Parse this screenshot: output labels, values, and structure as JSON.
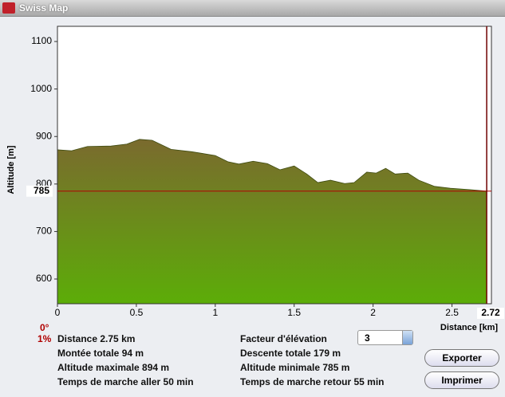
{
  "window": {
    "title": "Swiss Map"
  },
  "chart_data": {
    "type": "area",
    "x_label": "Distance [km]",
    "y_label": "Altitude [m]",
    "x": [
      0,
      0.09,
      0.19,
      0.34,
      0.44,
      0.52,
      0.6,
      0.72,
      0.85,
      1.0,
      1.08,
      1.15,
      1.24,
      1.33,
      1.41,
      1.5,
      1.58,
      1.65,
      1.73,
      1.82,
      1.88,
      1.96,
      2.02,
      2.08,
      2.14,
      2.22,
      2.29,
      2.39,
      2.49,
      2.62,
      2.72
    ],
    "values": [
      872,
      870,
      879,
      880,
      884,
      894,
      892,
      873,
      868,
      860,
      847,
      842,
      848,
      843,
      830,
      838,
      821,
      803,
      808,
      801,
      803,
      825,
      823,
      833,
      821,
      823,
      808,
      795,
      791,
      788,
      785
    ],
    "xlim": [
      0,
      2.75
    ],
    "ylim": [
      548,
      1132
    ],
    "xticks": [
      0,
      0.5,
      1,
      1.5,
      2,
      2.5
    ],
    "yticks": [
      600,
      700,
      800,
      900,
      1000,
      1100
    ],
    "marker_x": 2.72,
    "marker_y": 785,
    "top_color": "#7a6a2e",
    "bottom_color": "#5cad08"
  },
  "indicators": {
    "angle": "0°",
    "slope": "1%"
  },
  "stats": {
    "distance": {
      "label": "Distance",
      "value": "2.75 km"
    },
    "ascent": {
      "label": "Montée totale",
      "value": "94 m"
    },
    "max_altitude": {
      "label": "Altitude maximale",
      "value": "894 m"
    },
    "time_out": {
      "label": "Temps de marche aller",
      "value": "50 min"
    },
    "descent": {
      "label": "Descente totale",
      "value": "179 m"
    },
    "min_altitude": {
      "label": "Altitude minimale",
      "value": "785 m"
    },
    "time_back": {
      "label": "Temps de marche retour",
      "value": "55 min"
    }
  },
  "elevation_factor": {
    "label": "Facteur d'élévation",
    "value": "3"
  },
  "buttons": {
    "export": "Exporter",
    "print": "Imprimer"
  }
}
